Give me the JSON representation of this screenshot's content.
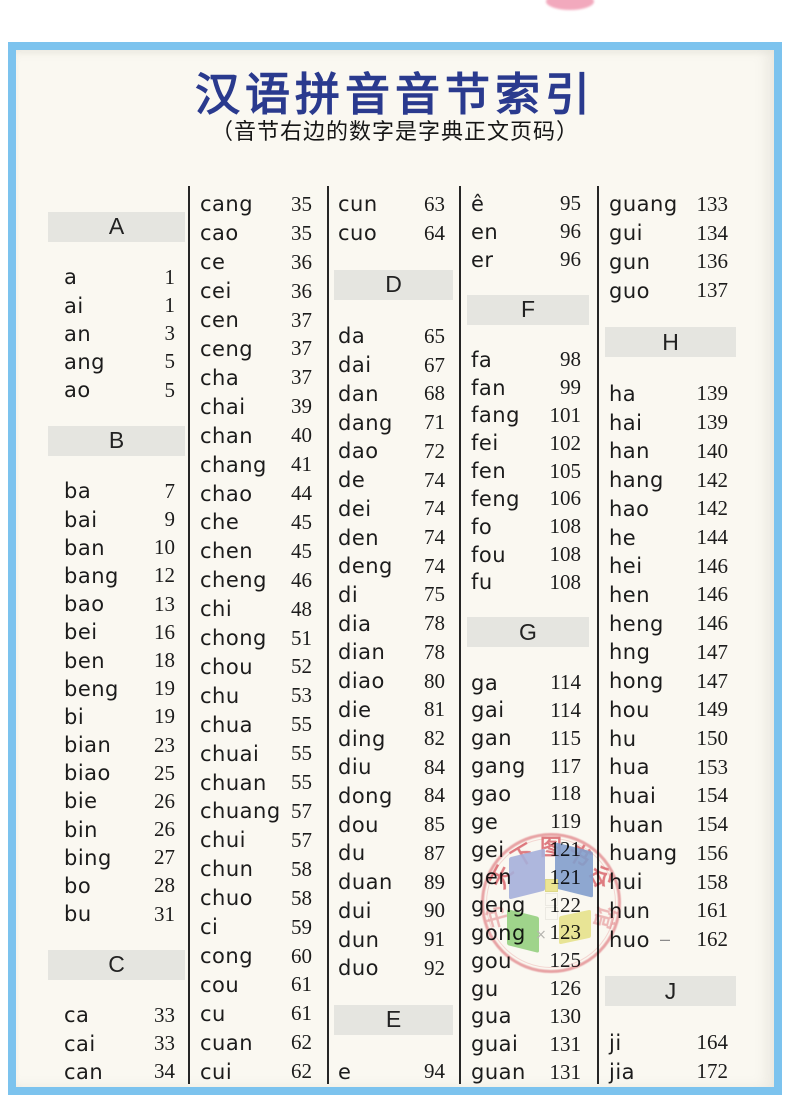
{
  "document": {
    "title": "汉语拼音音节索引",
    "subtitle": "（音节右边的数字是字典正文页码）",
    "title_color": "#2a3a8e",
    "border_color": "#7cc3ee",
    "paper_color": "#faf8f1",
    "section_band_color": "#e5e5e0"
  },
  "index_columns": [
    {
      "items": [
        {
          "h": "A"
        },
        {
          "s": "a",
          "p": "1"
        },
        {
          "s": "ai",
          "p": "1"
        },
        {
          "s": "an",
          "p": "3"
        },
        {
          "s": "ang",
          "p": "5"
        },
        {
          "s": "ao",
          "p": "5"
        },
        {
          "h": "B"
        },
        {
          "s": "ba",
          "p": "7"
        },
        {
          "s": "bai",
          "p": "9"
        },
        {
          "s": "ban",
          "p": "10"
        },
        {
          "s": "bang",
          "p": "12"
        },
        {
          "s": "bao",
          "p": "13"
        },
        {
          "s": "bei",
          "p": "16"
        },
        {
          "s": "ben",
          "p": "18"
        },
        {
          "s": "beng",
          "p": "19"
        },
        {
          "s": "bi",
          "p": "19"
        },
        {
          "s": "bian",
          "p": "23"
        },
        {
          "s": "biao",
          "p": "25"
        },
        {
          "s": "bie",
          "p": "26"
        },
        {
          "s": "bin",
          "p": "26"
        },
        {
          "s": "bing",
          "p": "27"
        },
        {
          "s": "bo",
          "p": "28"
        },
        {
          "s": "bu",
          "p": "31"
        },
        {
          "h": "C"
        },
        {
          "s": "ca",
          "p": "33"
        },
        {
          "s": "cai",
          "p": "33"
        },
        {
          "s": "can",
          "p": "34"
        }
      ]
    },
    {
      "items": [
        {
          "s": "cang",
          "p": "35"
        },
        {
          "s": "cao",
          "p": "35"
        },
        {
          "s": "ce",
          "p": "36"
        },
        {
          "s": "cei",
          "p": "36"
        },
        {
          "s": "cen",
          "p": "37"
        },
        {
          "s": "ceng",
          "p": "37"
        },
        {
          "s": "cha",
          "p": "37"
        },
        {
          "s": "chai",
          "p": "39"
        },
        {
          "s": "chan",
          "p": "40"
        },
        {
          "s": "chang",
          "p": "41"
        },
        {
          "s": "chao",
          "p": "44"
        },
        {
          "s": "che",
          "p": "45"
        },
        {
          "s": "chen",
          "p": "45"
        },
        {
          "s": "cheng",
          "p": "46"
        },
        {
          "s": "chi",
          "p": "48"
        },
        {
          "s": "chong",
          "p": "51"
        },
        {
          "s": "chou",
          "p": "52"
        },
        {
          "s": "chu",
          "p": "53"
        },
        {
          "s": "chua",
          "p": "55"
        },
        {
          "s": "chuai",
          "p": "55"
        },
        {
          "s": "chuan",
          "p": "55"
        },
        {
          "s": "chuang",
          "p": "57"
        },
        {
          "s": "chui",
          "p": "57"
        },
        {
          "s": "chun",
          "p": "58"
        },
        {
          "s": "chuo",
          "p": "58"
        },
        {
          "s": "ci",
          "p": "59"
        },
        {
          "s": "cong",
          "p": "60"
        },
        {
          "s": "cou",
          "p": "61"
        },
        {
          "s": "cu",
          "p": "61"
        },
        {
          "s": "cuan",
          "p": "62"
        },
        {
          "s": "cui",
          "p": "62"
        }
      ]
    },
    {
      "items": [
        {
          "s": "cun",
          "p": "63"
        },
        {
          "s": "cuo",
          "p": "64"
        },
        {
          "h": "D"
        },
        {
          "s": "da",
          "p": "65"
        },
        {
          "s": "dai",
          "p": "67"
        },
        {
          "s": "dan",
          "p": "68"
        },
        {
          "s": "dang",
          "p": "71"
        },
        {
          "s": "dao",
          "p": "72"
        },
        {
          "s": "de",
          "p": "74"
        },
        {
          "s": "dei",
          "p": "74"
        },
        {
          "s": "den",
          "p": "74"
        },
        {
          "s": "deng",
          "p": "74"
        },
        {
          "s": "di",
          "p": "75"
        },
        {
          "s": "dia",
          "p": "78"
        },
        {
          "s": "dian",
          "p": "78"
        },
        {
          "s": "diao",
          "p": "80"
        },
        {
          "s": "die",
          "p": "81"
        },
        {
          "s": "ding",
          "p": "82"
        },
        {
          "s": "diu",
          "p": "84"
        },
        {
          "s": "dong",
          "p": "84"
        },
        {
          "s": "dou",
          "p": "85"
        },
        {
          "s": "du",
          "p": "87"
        },
        {
          "s": "duan",
          "p": "89"
        },
        {
          "s": "dui",
          "p": "90"
        },
        {
          "s": "dun",
          "p": "91"
        },
        {
          "s": "duo",
          "p": "92"
        },
        {
          "h": "E"
        },
        {
          "s": "e",
          "p": "94"
        }
      ]
    },
    {
      "items": [
        {
          "s": "ê",
          "p": "95"
        },
        {
          "s": "en",
          "p": "96"
        },
        {
          "s": "er",
          "p": "96"
        },
        {
          "h": "F"
        },
        {
          "s": "fa",
          "p": "98"
        },
        {
          "s": "fan",
          "p": "99"
        },
        {
          "s": "fang",
          "p": "101"
        },
        {
          "s": "fei",
          "p": "102"
        },
        {
          "s": "fen",
          "p": "105"
        },
        {
          "s": "feng",
          "p": "106"
        },
        {
          "s": "fo",
          "p": "108"
        },
        {
          "s": "fou",
          "p": "108"
        },
        {
          "s": "fu",
          "p": "108"
        },
        {
          "h": "G"
        },
        {
          "s": "ga",
          "p": "114"
        },
        {
          "s": "gai",
          "p": "114"
        },
        {
          "s": "gan",
          "p": "115"
        },
        {
          "s": "gang",
          "p": "117"
        },
        {
          "s": "gao",
          "p": "118"
        },
        {
          "s": "ge",
          "p": "119"
        },
        {
          "s": "gei",
          "p": "121"
        },
        {
          "s": "gen",
          "p": "121"
        },
        {
          "s": "geng",
          "p": "122"
        },
        {
          "s": "gong",
          "p": "123"
        },
        {
          "s": "gou",
          "p": "125"
        },
        {
          "s": "gu",
          "p": "126"
        },
        {
          "s": "gua",
          "p": "130"
        },
        {
          "s": "guai",
          "p": "131"
        },
        {
          "s": "guan",
          "p": "131"
        }
      ]
    },
    {
      "items": [
        {
          "s": "guang",
          "p": "133"
        },
        {
          "s": "gui",
          "p": "134"
        },
        {
          "s": "gun",
          "p": "136"
        },
        {
          "s": "guo",
          "p": "137"
        },
        {
          "h": "H"
        },
        {
          "s": "ha",
          "p": "139"
        },
        {
          "s": "hai",
          "p": "139"
        },
        {
          "s": "han",
          "p": "140"
        },
        {
          "s": "hang",
          "p": "142"
        },
        {
          "s": "hao",
          "p": "142"
        },
        {
          "s": "he",
          "p": "144"
        },
        {
          "s": "hei",
          "p": "146"
        },
        {
          "s": "hen",
          "p": "146"
        },
        {
          "s": "heng",
          "p": "146"
        },
        {
          "s": "hng",
          "p": "147"
        },
        {
          "s": "hong",
          "p": "147"
        },
        {
          "s": "hou",
          "p": "149"
        },
        {
          "s": "hu",
          "p": "150"
        },
        {
          "s": "hua",
          "p": "153"
        },
        {
          "s": "huai",
          "p": "154"
        },
        {
          "s": "huan",
          "p": "154"
        },
        {
          "s": "huang",
          "p": "156"
        },
        {
          "s": "hui",
          "p": "158"
        },
        {
          "s": "hun",
          "p": "161"
        },
        {
          "s": "huo",
          "p": "162",
          "m": "–"
        },
        {
          "h": "J"
        },
        {
          "s": "ji",
          "p": "164"
        },
        {
          "s": "jia",
          "p": "172"
        }
      ]
    }
  ],
  "watermark_stamp": {
    "color": "#dd5f6b",
    "arc_characters": [
      "天",
      "下",
      "图",
      "书",
      "谷"
    ],
    "side_characters": [
      "书",
      "馆"
    ],
    "logo_colors": {
      "top_left": "#aab5e8",
      "top_right": "#85a3d8",
      "bottom_left": "#98d687",
      "bottom_right": "#ebe993",
      "spine": "#f1ec9b"
    },
    "cross_mark": "×"
  },
  "artifacts": {
    "top_sticker_color": "#f2a9bd"
  }
}
